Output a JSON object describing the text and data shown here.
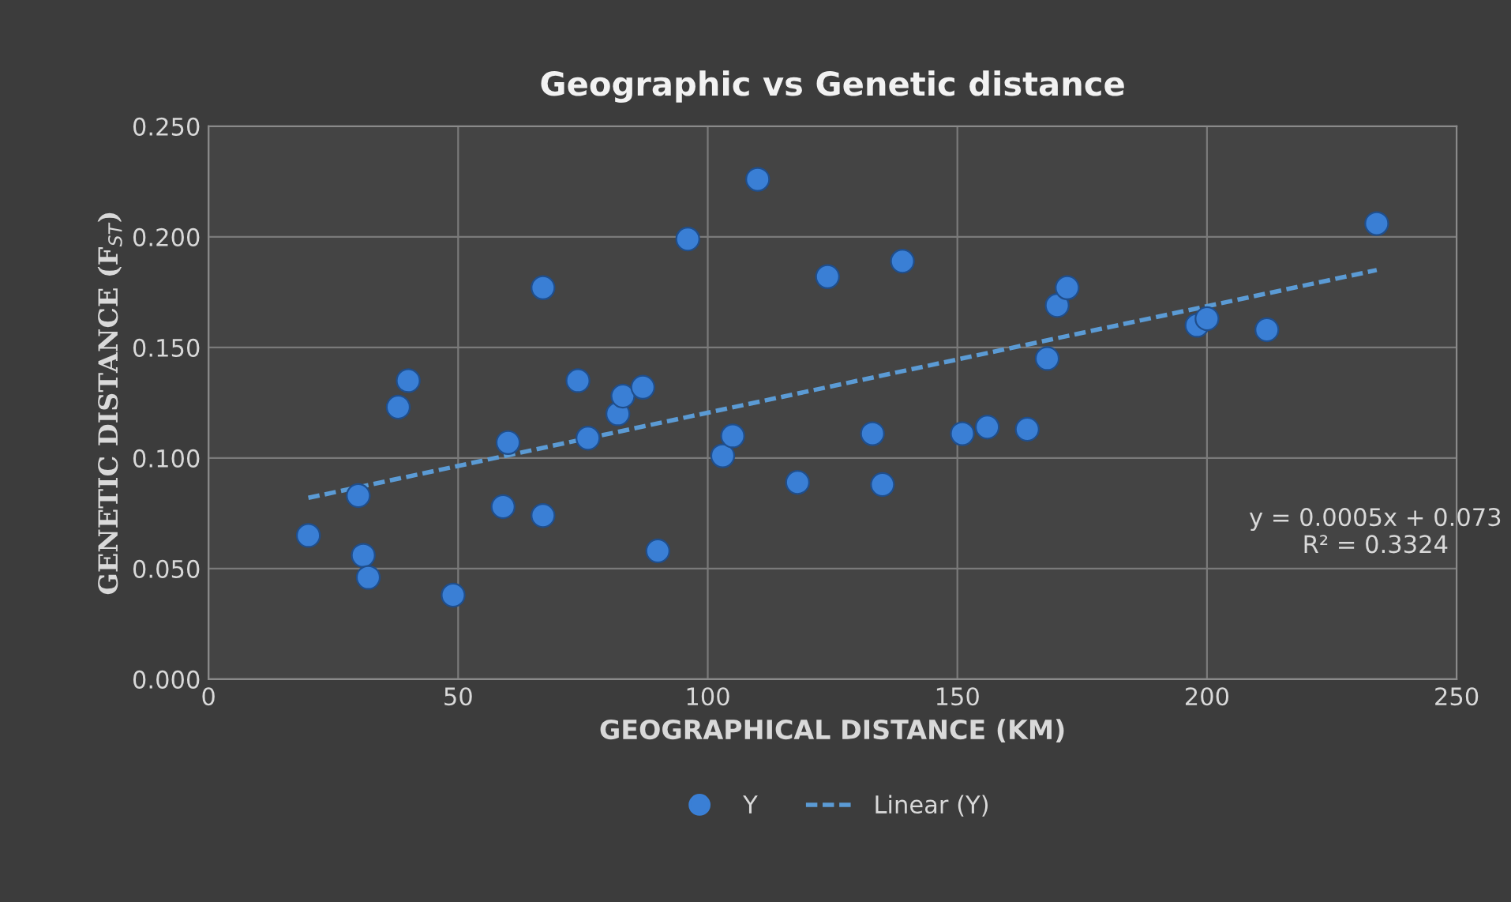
{
  "chart_data": {
    "type": "scatter",
    "title": "Geographic vs Genetic distance",
    "xlabel": "GEOGRAPHICAL DISTANCE (KM)",
    "ylabel": "GENETIC DISTANCE (F$_{ST}$)",
    "xlim": [
      0,
      250
    ],
    "xticks": [
      0,
      50,
      100,
      150,
      200,
      250
    ],
    "ylim": [
      0,
      0.25
    ],
    "yticks": [
      {
        "value": 0,
        "label": "0.000"
      },
      {
        "value": 0.05,
        "label": "0.050"
      },
      {
        "value": 0.1,
        "label": "0.100"
      },
      {
        "value": 0.15,
        "label": "0.150"
      },
      {
        "value": 0.2,
        "label": "0.200"
      },
      {
        "value": 0.25,
        "label": "0.250"
      }
    ],
    "grid": true,
    "legend": "bottom",
    "annotations": [
      "y = 0.0005x + 0.073\nR² = 0.3324"
    ],
    "series": [
      {
        "name": "Y",
        "color": "#3a7fd5",
        "marker": "circle",
        "x": [
          20,
          30,
          31,
          32,
          38,
          40,
          49,
          59,
          60,
          67,
          67,
          74,
          76,
          82,
          83,
          87,
          90,
          96,
          103,
          105,
          110,
          118,
          124,
          133,
          135,
          139,
          151,
          156,
          164,
          168,
          170,
          172,
          198,
          200,
          212,
          234
        ],
        "values": [
          0.065,
          0.083,
          0.056,
          0.046,
          0.123,
          0.135,
          0.038,
          0.078,
          0.107,
          0.177,
          0.074,
          0.135,
          0.109,
          0.12,
          0.128,
          0.132,
          0.058,
          0.199,
          0.101,
          0.11,
          0.226,
          0.089,
          0.182,
          0.111,
          0.088,
          0.189,
          0.111,
          0.114,
          0.113,
          0.145,
          0.169,
          0.177,
          0.16,
          0.163,
          0.158,
          0.206
        ]
      },
      {
        "name": "Linear (Y)",
        "type": "line",
        "color": "#5b9bd5",
        "line_style": "dashed",
        "x": [
          20,
          234
        ],
        "values": [
          0.082,
          0.185
        ]
      }
    ]
  }
}
